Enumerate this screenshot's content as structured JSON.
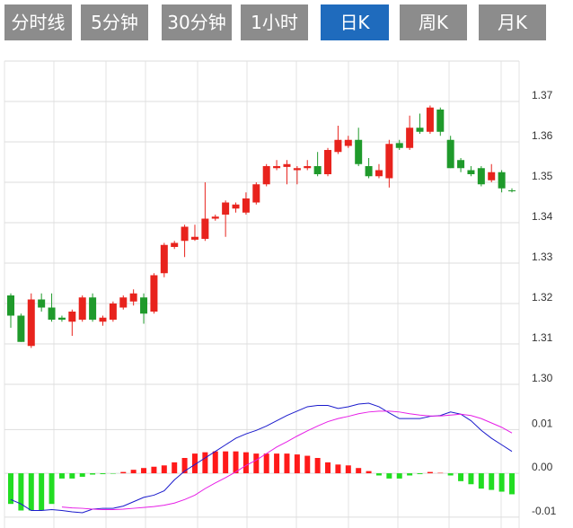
{
  "tabs": [
    "分时线",
    "5分钟",
    "30分钟",
    "1小时",
    "日K",
    "周K",
    "月K"
  ],
  "active_tab": 4,
  "chart_data": [
    {
      "type": "candlestick",
      "up_color": "#e8231d",
      "down_color": "#1f9a2b",
      "open": [
        1.322,
        1.317,
        1.3095,
        1.321,
        1.319,
        1.3165,
        1.3155,
        1.316,
        1.3215,
        1.3155,
        1.316,
        1.319,
        1.3205,
        1.3215,
        1.318,
        1.3275,
        1.334,
        1.3355,
        1.3358,
        1.336,
        1.341,
        1.342,
        1.3435,
        1.3425,
        1.345,
        1.3495,
        1.3535,
        1.3538,
        1.353,
        1.3535,
        1.354,
        1.352,
        1.3575,
        1.359,
        1.3605,
        1.354,
        1.3515,
        1.351,
        1.3597,
        1.3585,
        1.3635,
        1.3625,
        1.368,
        1.3605,
        1.3555,
        1.353,
        1.3535,
        1.3505,
        1.3525,
        1.348
      ],
      "high": [
        1.3225,
        1.3175,
        1.3225,
        1.3225,
        1.3225,
        1.317,
        1.3185,
        1.322,
        1.3225,
        1.317,
        1.3205,
        1.322,
        1.3235,
        1.3225,
        1.3275,
        1.335,
        1.3355,
        1.3395,
        1.3395,
        1.35,
        1.342,
        1.3455,
        1.345,
        1.3475,
        1.35,
        1.3545,
        1.3555,
        1.3555,
        1.354,
        1.3555,
        1.3575,
        1.3585,
        1.364,
        1.3615,
        1.3635,
        1.356,
        1.3545,
        1.3605,
        1.3605,
        1.3665,
        1.367,
        1.369,
        1.3685,
        1.3615,
        1.356,
        1.354,
        1.354,
        1.3545,
        1.353,
        1.3485
      ],
      "low": [
        1.314,
        1.3105,
        1.309,
        1.318,
        1.3155,
        1.3155,
        1.312,
        1.3155,
        1.3155,
        1.3145,
        1.3155,
        1.3185,
        1.3195,
        1.315,
        1.3175,
        1.3265,
        1.3335,
        1.3315,
        1.3355,
        1.3355,
        1.3405,
        1.3365,
        1.3425,
        1.342,
        1.3445,
        1.349,
        1.353,
        1.3495,
        1.3495,
        1.353,
        1.3515,
        1.3515,
        1.357,
        1.3585,
        1.354,
        1.351,
        1.351,
        1.3487,
        1.358,
        1.358,
        1.362,
        1.362,
        1.3615,
        1.3535,
        1.3525,
        1.3515,
        1.349,
        1.35,
        1.3475,
        1.3475
      ],
      "close": [
        1.317,
        1.3105,
        1.321,
        1.319,
        1.316,
        1.316,
        1.318,
        1.3215,
        1.316,
        1.3165,
        1.32,
        1.3215,
        1.3225,
        1.3175,
        1.327,
        1.3345,
        1.335,
        1.339,
        1.3365,
        1.341,
        1.3415,
        1.345,
        1.3445,
        1.346,
        1.3495,
        1.354,
        1.354,
        1.3545,
        1.3535,
        1.354,
        1.352,
        1.358,
        1.3605,
        1.3605,
        1.3545,
        1.3515,
        1.353,
        1.3595,
        1.3585,
        1.3635,
        1.3625,
        1.3685,
        1.3625,
        1.3535,
        1.3535,
        1.352,
        1.3495,
        1.3525,
        1.3485,
        1.3478
      ],
      "ylim": [
        1.3,
        1.38
      ],
      "yticks": [
        {
          "value": 1.3,
          "label": "1.30"
        },
        1.31,
        1.32,
        1.33,
        1.34,
        1.35,
        1.36,
        1.37
      ],
      "grid": true
    },
    {
      "type": "macd",
      "up_color": "#ff1a1a",
      "down_color": "#22dd22",
      "histogram": [
        -0.007,
        -0.0085,
        -0.0085,
        -0.0085,
        -0.007,
        -0.0012,
        -0.0012,
        -0.0008,
        -0.0003,
        -0.0002,
        -0.0001,
        0.0003,
        0.0008,
        0.0012,
        0.0015,
        0.0018,
        0.0025,
        0.0035,
        0.0045,
        0.0048,
        0.005,
        0.005,
        0.005,
        0.0048,
        0.0045,
        0.0045,
        0.0045,
        0.0045,
        0.0043,
        0.004,
        0.0035,
        0.0025,
        0.002,
        0.0018,
        0.0012,
        0.0005,
        -0.0005,
        -0.0012,
        -0.0012,
        -0.0005,
        -0.0002,
        0.0003,
        0.0001,
        -0.0005,
        -0.0018,
        -0.0025,
        -0.0035,
        -0.0038,
        -0.0042,
        -0.0048
      ],
      "series": [
        {
          "color": "#1a1acc",
          "values": [
            -0.006,
            -0.007,
            -0.0085,
            -0.0085,
            -0.0083,
            -0.0085,
            -0.0088,
            -0.009,
            -0.0082,
            -0.008,
            -0.008,
            -0.0075,
            -0.0065,
            -0.0055,
            -0.005,
            -0.004,
            -0.0015,
            0.0005,
            0.002,
            0.0035,
            0.005,
            0.0065,
            0.008,
            0.009,
            0.0098,
            0.0108,
            0.012,
            0.0132,
            0.0142,
            0.0152,
            0.0155,
            0.0155,
            0.0148,
            0.0152,
            0.0158,
            0.016,
            0.0152,
            0.0138,
            0.0125,
            0.0125,
            0.0125,
            0.013,
            0.0132,
            0.014,
            0.0135,
            0.012,
            0.0098,
            0.008,
            0.0065,
            0.005
          ]
        },
        {
          "color": "#e61ee6",
          "values": [
            null,
            null,
            null,
            null,
            null,
            -0.0077,
            -0.0079,
            -0.008,
            -0.0082,
            -0.0083,
            -0.0083,
            -0.0082,
            -0.008,
            -0.0078,
            -0.0076,
            -0.0073,
            -0.0068,
            -0.006,
            -0.005,
            -0.0035,
            -0.0022,
            -0.001,
            0.0003,
            0.0018,
            0.003,
            0.0045,
            0.006,
            0.0072,
            0.0085,
            0.0097,
            0.0108,
            0.0118,
            0.0125,
            0.013,
            0.0136,
            0.014,
            0.0142,
            0.0142,
            0.014,
            0.0136,
            0.0133,
            0.0131,
            0.0131,
            0.0133,
            0.0135,
            0.0132,
            0.0125,
            0.0115,
            0.0105,
            0.0092
          ]
        }
      ],
      "ylim": [
        -0.0125,
        0.0195
      ],
      "yticks": [
        -0.01,
        {
          "value": 0,
          "label": "0.00"
        },
        0.01
      ],
      "grid": true
    }
  ]
}
